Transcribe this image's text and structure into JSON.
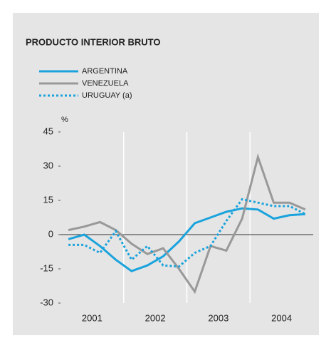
{
  "chart_data": {
    "type": "line",
    "title": "PRODUCTO INTERIOR BRUTO",
    "y_label": "%",
    "x": [
      2001.125,
      2001.375,
      2001.625,
      2001.875,
      2002.125,
      2002.375,
      2002.625,
      2002.875,
      2003.125,
      2003.375,
      2003.625,
      2003.875,
      2004.125,
      2004.375,
      2004.625,
      2004.875
    ],
    "series": [
      {
        "name": "ARGENTINA",
        "color": "#1aa3dc",
        "dash": "solid",
        "values": [
          -2,
          0,
          -5,
          -11,
          -16,
          -13.5,
          -9.5,
          -3,
          5,
          7.5,
          10,
          11.5,
          11,
          7,
          8.5,
          9
        ]
      },
      {
        "name": "VENEZUELA",
        "color": "#999999",
        "dash": "solid",
        "values": [
          2,
          3.5,
          5.5,
          2,
          -4,
          -8.5,
          -6,
          -15,
          -25,
          -5,
          -7,
          7,
          34,
          14,
          14,
          11
        ]
      },
      {
        "name": "URUGUAY (a)",
        "color": "#1aa3dc",
        "dash": "dotted",
        "values": [
          -4.5,
          -4.5,
          -8,
          1.5,
          -11,
          -5,
          -13.5,
          -14,
          -8,
          -5,
          6,
          15.5,
          14,
          12.5,
          12.5,
          9
        ]
      }
    ],
    "xlim": [
      2001,
      2005
    ],
    "xticks": [
      {
        "value": 2001.5,
        "label": "2001"
      },
      {
        "value": 2002.5,
        "label": "2002"
      },
      {
        "value": 2003.5,
        "label": "2003"
      },
      {
        "value": 2004.5,
        "label": "2004"
      }
    ],
    "xgrid": [
      2002,
      2003,
      2004
    ],
    "ylim": [
      -30,
      45
    ],
    "yticks": [
      -30,
      -15,
      0,
      15,
      30,
      45
    ]
  }
}
